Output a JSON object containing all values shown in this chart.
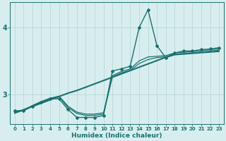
{
  "xlabel": "Humidex (Indice chaleur)",
  "bg_color": "#d8eeee",
  "line_color": "#1a7070",
  "grid_color": "#b8d8d8",
  "x_values": [
    0,
    1,
    2,
    3,
    4,
    5,
    6,
    7,
    8,
    9,
    10,
    11,
    12,
    13,
    14,
    15,
    16,
    17,
    18,
    19,
    20,
    21,
    22,
    23
  ],
  "line_main": [
    2.75,
    2.75,
    2.82,
    2.88,
    2.93,
    2.93,
    2.77,
    2.65,
    2.65,
    2.65,
    2.68,
    3.35,
    3.38,
    3.42,
    4.0,
    4.27,
    3.73,
    3.55,
    3.62,
    3.65,
    3.65,
    3.67,
    3.68,
    3.7
  ],
  "line_a": [
    2.74,
    2.76,
    2.83,
    2.89,
    2.94,
    2.97,
    2.82,
    2.73,
    2.7,
    2.7,
    2.72,
    3.28,
    3.34,
    3.38,
    3.5,
    3.56,
    3.57,
    3.58,
    3.62,
    3.63,
    3.64,
    3.65,
    3.67,
    3.68
  ],
  "line_b": [
    2.73,
    2.75,
    2.82,
    2.88,
    2.93,
    2.96,
    2.8,
    2.71,
    2.68,
    2.68,
    2.7,
    3.26,
    3.32,
    3.36,
    3.46,
    3.52,
    3.55,
    3.56,
    3.6,
    3.61,
    3.62,
    3.63,
    3.65,
    3.66
  ],
  "line_slope1": [
    2.72,
    2.77,
    2.82,
    2.87,
    2.92,
    2.97,
    3.02,
    3.06,
    3.11,
    3.16,
    3.21,
    3.26,
    3.31,
    3.36,
    3.41,
    3.46,
    3.51,
    3.56,
    3.6,
    3.61,
    3.62,
    3.63,
    3.64,
    3.65
  ],
  "line_slope2": [
    2.71,
    2.76,
    2.81,
    2.86,
    2.91,
    2.96,
    3.01,
    3.05,
    3.1,
    3.15,
    3.2,
    3.25,
    3.3,
    3.35,
    3.4,
    3.45,
    3.5,
    3.55,
    3.59,
    3.6,
    3.61,
    3.62,
    3.63,
    3.64
  ],
  "ylim": [
    2.55,
    4.38
  ],
  "yticks": [
    3,
    4
  ],
  "xlim": [
    -0.5,
    23.5
  ],
  "xticks": [
    0,
    1,
    2,
    3,
    4,
    5,
    6,
    7,
    8,
    9,
    10,
    11,
    12,
    13,
    14,
    15,
    16,
    17,
    18,
    19,
    20,
    21,
    22,
    23
  ]
}
